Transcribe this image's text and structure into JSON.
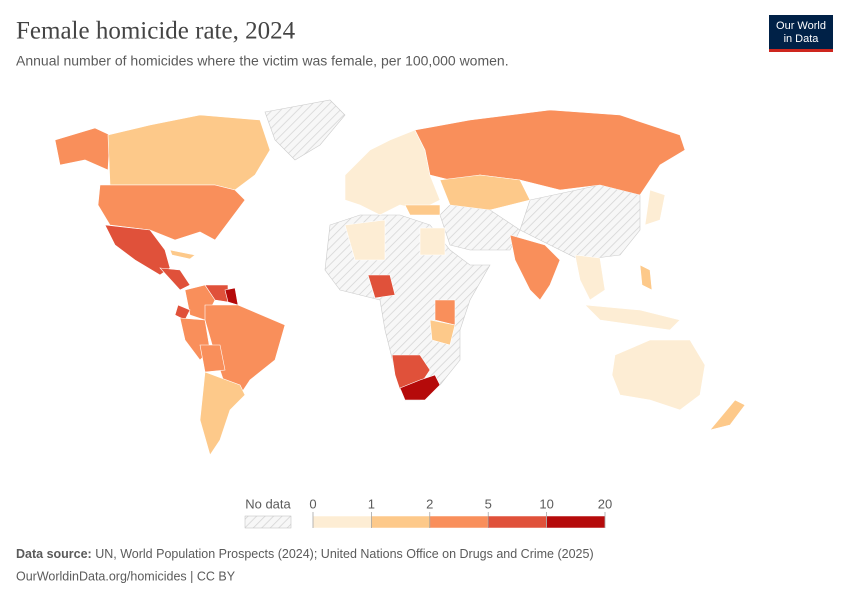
{
  "header": {
    "title": "Female homicide rate, 2024",
    "subtitle": "Annual number of homicides where the victim was female, per 100,000 women."
  },
  "logo": {
    "line1": "Our World",
    "line2": "in Data"
  },
  "legend": {
    "no_data": "No data",
    "ticks": [
      0,
      1,
      2,
      5,
      10,
      20
    ],
    "colors": [
      "#fdedd4",
      "#fdc98a",
      "#f98f5b",
      "#e0513a",
      "#b50a0a"
    ]
  },
  "footer": {
    "source_label": "Data source:",
    "source": "UN, World Population Prospects (2024); United Nations Office on Drugs and Crime (2025)",
    "url": "OurWorldinData.org/homicides | CC BY"
  }
}
